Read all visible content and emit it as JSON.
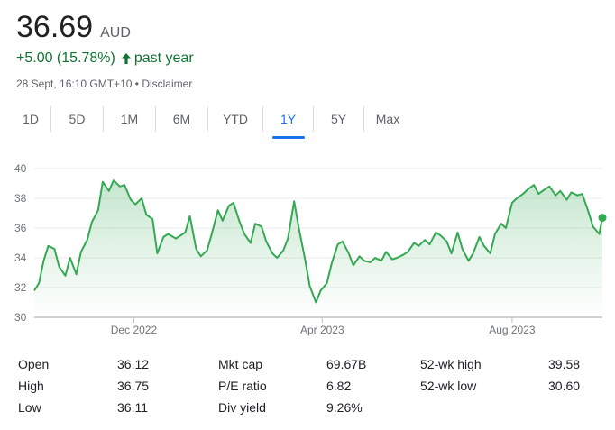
{
  "quote": {
    "price": "36.69",
    "currency": "AUD",
    "change": "+5.00 (15.78%)",
    "change_period": "past year",
    "timestamp": "28 Sept, 16:10 GMT+10",
    "separator": "•",
    "disclaimer": "Disclaimer",
    "up_color": "#137333"
  },
  "tabs": [
    {
      "label": "1D",
      "active": false
    },
    {
      "label": "5D",
      "active": false
    },
    {
      "label": "1M",
      "active": false
    },
    {
      "label": "6M",
      "active": false
    },
    {
      "label": "YTD",
      "active": false
    },
    {
      "label": "1Y",
      "active": true
    },
    {
      "label": "5Y",
      "active": false
    },
    {
      "label": "Max",
      "active": false
    }
  ],
  "chart_data": {
    "type": "line",
    "title": "",
    "xlabel": "",
    "ylabel": "",
    "ylim": [
      30,
      40
    ],
    "y_ticks": [
      "40",
      "38",
      "36",
      "34",
      "32",
      "30"
    ],
    "x_ticks": [
      "Dec 2022",
      "Apr 2023",
      "Aug 2023"
    ],
    "grid": true,
    "line_color": "#34a853",
    "x": [
      "2022-09-28",
      "2022-10-01",
      "2022-10-04",
      "2022-10-07",
      "2022-10-11",
      "2022-10-14",
      "2022-10-18",
      "2022-10-21",
      "2022-10-25",
      "2022-10-28",
      "2022-11-01",
      "2022-11-04",
      "2022-11-08",
      "2022-11-11",
      "2022-11-15",
      "2022-11-18",
      "2022-11-22",
      "2022-11-25",
      "2022-11-29",
      "2022-12-02",
      "2022-12-06",
      "2022-12-09",
      "2022-12-13",
      "2022-12-16",
      "2022-12-20",
      "2022-12-23",
      "2022-12-28",
      "2023-01-03",
      "2023-01-06",
      "2023-01-10",
      "2023-01-13",
      "2023-01-17",
      "2023-01-20",
      "2023-01-24",
      "2023-01-27",
      "2023-01-31",
      "2023-02-03",
      "2023-02-07",
      "2023-02-10",
      "2023-02-14",
      "2023-02-17",
      "2023-02-21",
      "2023-02-24",
      "2023-02-28",
      "2023-03-03",
      "2023-03-07",
      "2023-03-10",
      "2023-03-14",
      "2023-03-17",
      "2023-03-21",
      "2023-03-24",
      "2023-03-28",
      "2023-03-31",
      "2023-04-04",
      "2023-04-07",
      "2023-04-11",
      "2023-04-14",
      "2023-04-18",
      "2023-04-21",
      "2023-04-25",
      "2023-04-28",
      "2023-05-02",
      "2023-05-05",
      "2023-05-09",
      "2023-05-12",
      "2023-05-16",
      "2023-05-19",
      "2023-05-23",
      "2023-05-26",
      "2023-05-30",
      "2023-06-02",
      "2023-06-06",
      "2023-06-09",
      "2023-06-13",
      "2023-06-16",
      "2023-06-20",
      "2023-06-23",
      "2023-06-27",
      "2023-06-30",
      "2023-07-04",
      "2023-07-07",
      "2023-07-11",
      "2023-07-14",
      "2023-07-18",
      "2023-07-21",
      "2023-07-25",
      "2023-07-28",
      "2023-08-01",
      "2023-08-04",
      "2023-08-08",
      "2023-08-11",
      "2023-08-15",
      "2023-08-18",
      "2023-08-22",
      "2023-08-25",
      "2023-08-29",
      "2023-09-01",
      "2023-09-05",
      "2023-09-08",
      "2023-09-12",
      "2023-09-15",
      "2023-09-19",
      "2023-09-22",
      "2023-09-26",
      "2023-09-28"
    ],
    "series": [
      {
        "values": [
          31.8,
          32.3,
          33.8,
          34.8,
          34.6,
          33.4,
          32.8,
          34.0,
          32.9,
          34.4,
          35.2,
          36.4,
          37.2,
          39.1,
          38.5,
          39.2,
          38.8,
          38.9,
          37.9,
          37.6,
          38.0,
          36.9,
          36.6,
          34.3,
          35.4,
          35.6,
          35.3,
          35.7,
          36.8,
          34.6,
          34.1,
          34.5,
          35.6,
          37.2,
          36.5,
          37.5,
          37.7,
          36.4,
          35.6,
          35.0,
          36.3,
          36.1,
          35.1,
          34.3,
          34.0,
          34.5,
          35.3,
          37.8,
          36.0,
          33.9,
          32.1,
          31.0,
          31.8,
          32.3,
          33.6,
          34.9,
          35.1,
          34.3,
          33.5,
          34.1,
          33.8,
          33.7,
          34.0,
          33.8,
          34.4,
          33.9,
          34.0,
          34.2,
          34.4,
          35.0,
          34.8,
          35.2,
          34.9,
          35.7,
          35.5,
          35.1,
          34.3,
          35.7,
          34.6,
          33.8,
          34.3,
          35.4,
          34.8,
          34.3,
          35.6,
          36.3,
          36.0,
          37.7,
          38.0,
          38.3,
          38.6,
          38.9,
          38.3,
          38.6,
          38.8,
          38.2,
          38.5,
          37.9,
          38.4,
          38.2,
          38.3,
          37.1,
          36.1,
          35.6,
          36.69
        ]
      }
    ]
  },
  "stats": [
    {
      "label": "Open",
      "value": "36.12"
    },
    {
      "label": "High",
      "value": "36.75"
    },
    {
      "label": "Low",
      "value": "36.11"
    },
    {
      "label": "Mkt cap",
      "value": "69.67B"
    },
    {
      "label": "P/E ratio",
      "value": "6.82"
    },
    {
      "label": "Div yield",
      "value": "9.26%"
    },
    {
      "label": "52-wk high",
      "value": "39.58"
    },
    {
      "label": "52-wk low",
      "value": "30.60"
    }
  ]
}
